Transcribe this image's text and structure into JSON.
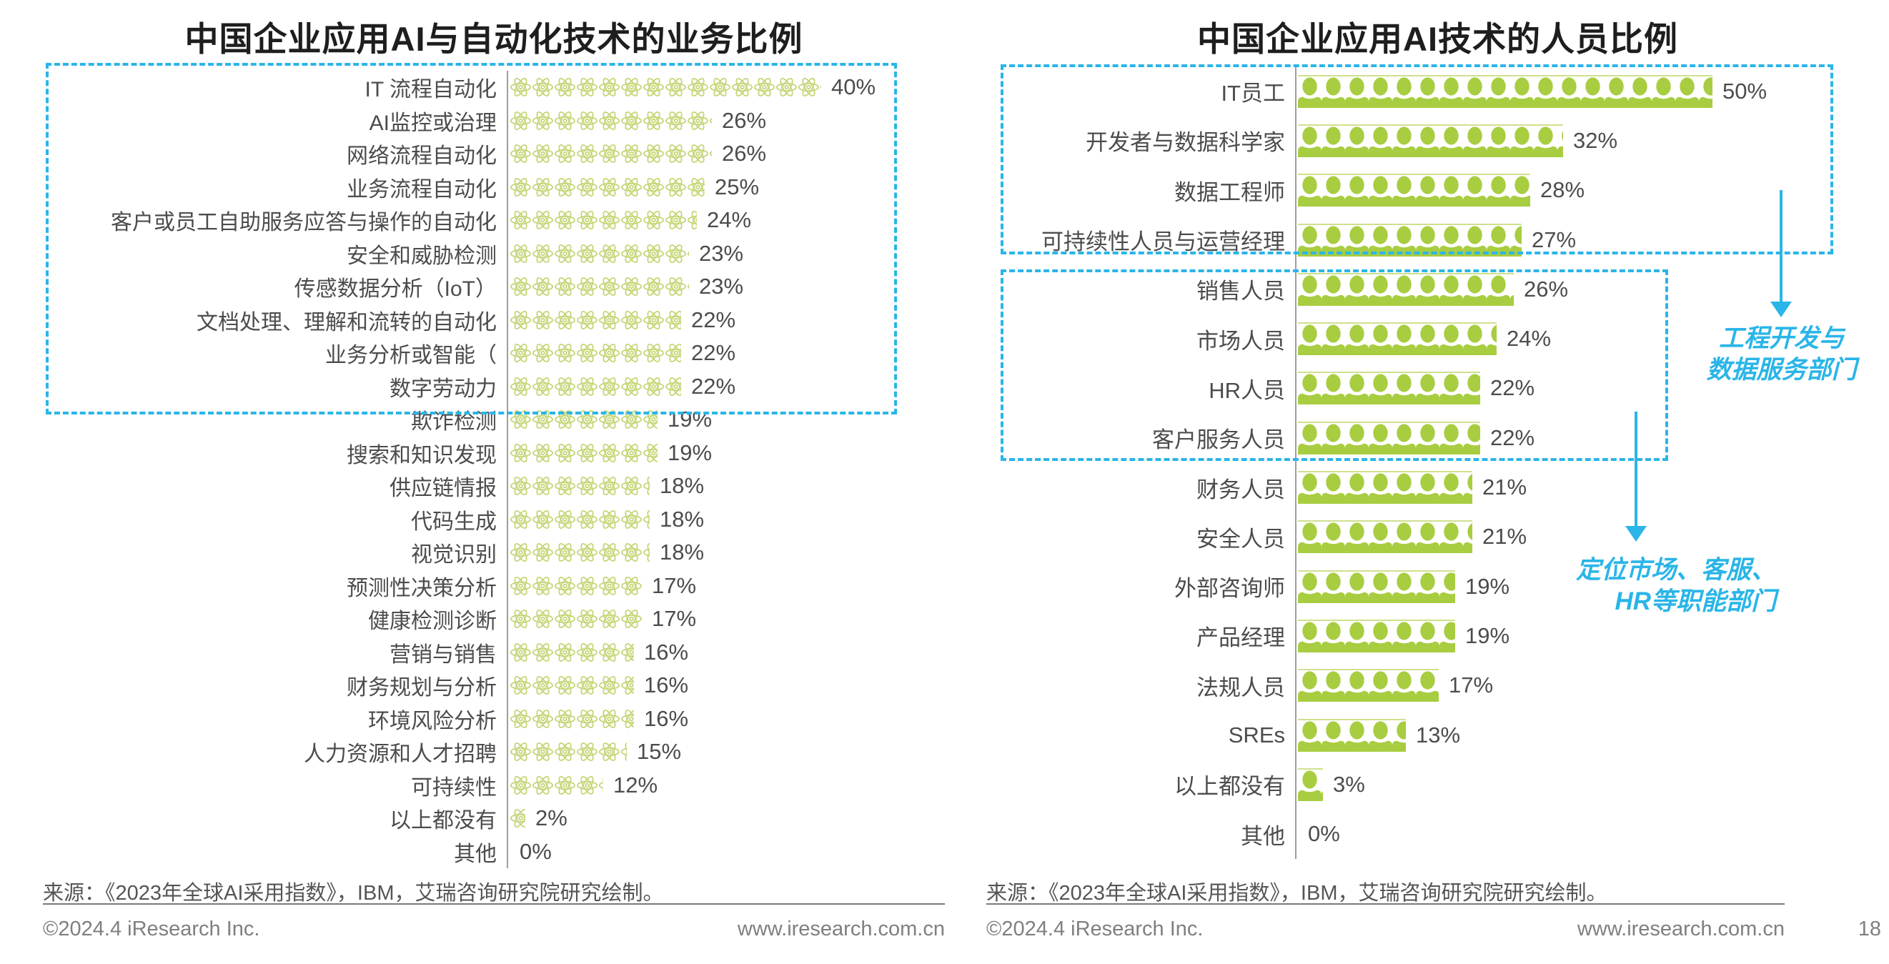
{
  "source_note": "来源：《2023年全球AI采用指数》，IBM，艾瑞咨询研究院研究绘制。",
  "footer": {
    "copyright": "©2024.4 iResearch Inc.",
    "website": "www.iresearch.com.cn",
    "page_number": "18"
  },
  "style": {
    "bar_green": "#a8cd41",
    "pictogram_outline_green": "#c4d677",
    "accent_cyan": "#2ab5e8",
    "axis_gray": "#9e9e9e"
  },
  "chart_data": [
    {
      "type": "bar",
      "orientation": "horizontal",
      "pictogram": "atom-icon",
      "title": "中国企业应用AI与自动化技术的业务比例",
      "unit": "%",
      "xlim": [
        0,
        40
      ],
      "grid": false,
      "legend": "none",
      "categories": [
        "IT 流程自动化",
        "AI监控或治理",
        "网络流程自动化",
        "业务流程自动化",
        "客户或员工自助服务应答与操作的自动化",
        "安全和威胁检测",
        "传感数据分析（IoT）",
        "文档处理、理解和流转的自动化",
        "业务分析或智能（",
        "数字劳动力",
        "欺诈检测",
        "搜索和知识发现",
        "供应链情报",
        "代码生成",
        "视觉识别",
        "预测性决策分析",
        "健康检测诊断",
        "营销与销售",
        "财务规划与分析",
        "环境风险分析",
        "人力资源和人才招聘",
        "可持续性",
        "以上都没有",
        "其他"
      ],
      "values": [
        40,
        26,
        26,
        25,
        24,
        23,
        23,
        22,
        22,
        22,
        19,
        19,
        18,
        18,
        18,
        17,
        17,
        16,
        16,
        16,
        15,
        12,
        2,
        0
      ],
      "highlight_box": {
        "rows_from": "IT 流程自动化",
        "rows_to": "数字劳动力",
        "color": "#2ab5e8"
      }
    },
    {
      "type": "bar",
      "orientation": "horizontal",
      "pictogram": "person-icon",
      "title": "中国企业应用AI技术的人员比例",
      "unit": "%",
      "xlim": [
        0,
        50
      ],
      "grid": false,
      "legend": "none",
      "categories": [
        "IT员工",
        "开发者与数据科学家",
        "数据工程师",
        "可持续性人员与运营经理",
        "销售人员",
        "市场人员",
        "HR人员",
        "客户服务人员",
        "财务人员",
        "安全人员",
        "外部咨询师",
        "产品经理",
        "法规人员",
        "SREs",
        "以上都没有",
        "其他"
      ],
      "values": [
        50,
        32,
        28,
        27,
        26,
        24,
        22,
        22,
        21,
        21,
        19,
        19,
        17,
        13,
        3,
        0
      ],
      "highlight_boxes": [
        {
          "rows_from": "IT员工",
          "rows_to": "可持续性人员与运营经理",
          "color": "#2ab5e8"
        },
        {
          "rows_from": "销售人员",
          "rows_to": "客户服务人员",
          "color": "#2ab5e8"
        }
      ],
      "annotations": [
        {
          "lines": [
            "工程开发与",
            "数据服务部门"
          ]
        },
        {
          "lines": [
            "定位市场、客服、",
            "HR等职能部门"
          ]
        }
      ]
    }
  ]
}
